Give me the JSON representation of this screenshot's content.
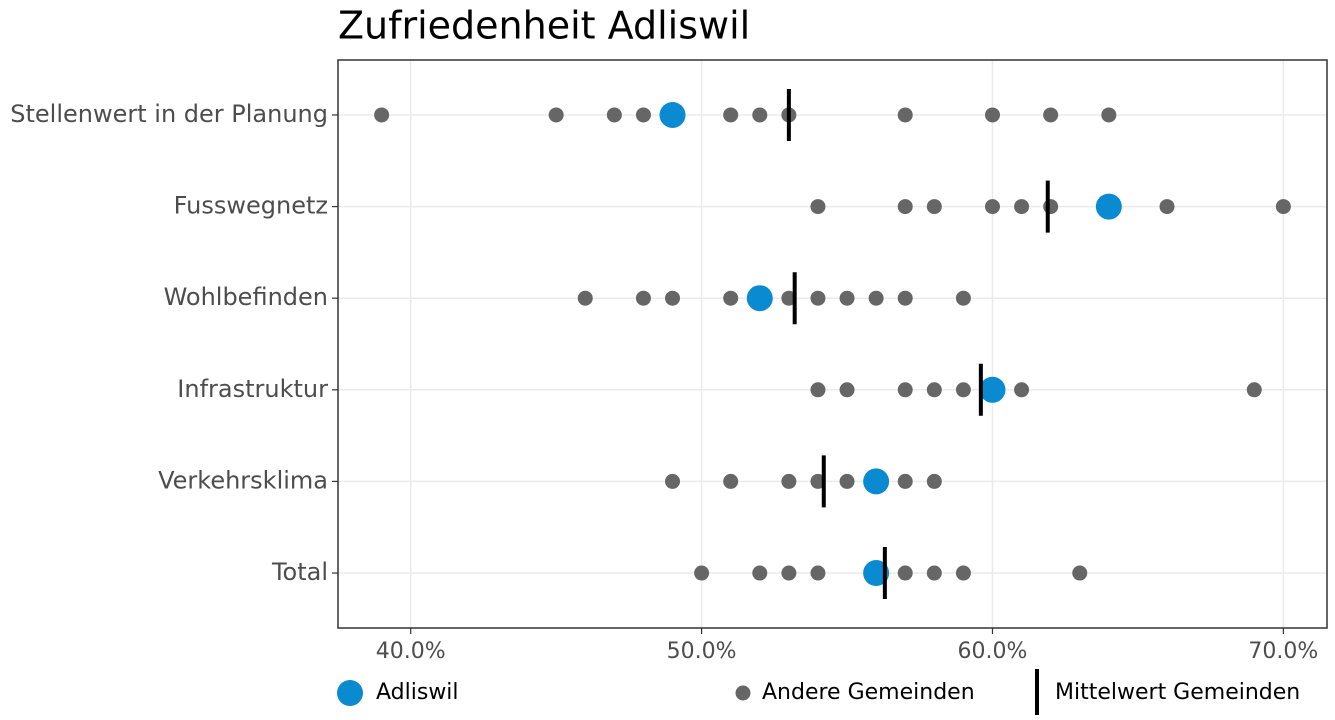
{
  "chart_data": {
    "type": "dot",
    "title": "Zufriedenheit Adliswil",
    "categories": [
      "Stellenwert in der Planung",
      "Fusswegnetz",
      "Wohlbefinden",
      "Infrastruktur",
      "Verkehrsklima",
      "Total"
    ],
    "series": [
      {
        "name": "Adliswil",
        "color": "#0a8ad0",
        "values": [
          49,
          64,
          52,
          60,
          56,
          56
        ]
      },
      {
        "name": "Andere Gemeinden",
        "color": "#666666",
        "values": [
          [
            39,
            45,
            47,
            48,
            51,
            52,
            53,
            57,
            60,
            62,
            64
          ],
          [
            54,
            57,
            58,
            60,
            61,
            62,
            66,
            70
          ],
          [
            46,
            48,
            49,
            51,
            53,
            54,
            55,
            56,
            57,
            59
          ],
          [
            54,
            55,
            57,
            58,
            59,
            61,
            69
          ],
          [
            49,
            51,
            53,
            54,
            55,
            57,
            58
          ],
          [
            50,
            52,
            53,
            54,
            57,
            58,
            59,
            63
          ]
        ]
      },
      {
        "name": "Mittelwert Gemeinden",
        "color": "#000000",
        "values": [
          53,
          61.9,
          53.2,
          59.6,
          54.2,
          56.3
        ]
      }
    ],
    "xlim": [
      37.5,
      71.5
    ],
    "xticks": [
      {
        "value": 40,
        "label": "40.0%"
      },
      {
        "value": 50,
        "label": "50.0%"
      },
      {
        "value": 60,
        "label": "60.0%"
      },
      {
        "value": 70,
        "label": "70.0%"
      }
    ],
    "grid": true,
    "legend": "bottom"
  }
}
